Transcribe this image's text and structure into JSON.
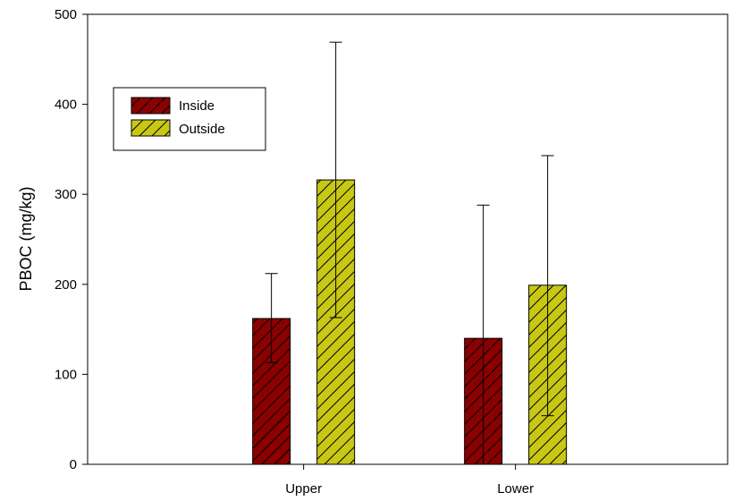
{
  "chart_data": {
    "type": "bar",
    "title": "",
    "xlabel": "",
    "ylabel": "PBOC (mg/kg)",
    "categories": [
      "Upper",
      "Lower"
    ],
    "ylim": [
      0,
      500
    ],
    "yticks": [
      0,
      100,
      200,
      300,
      400,
      500
    ],
    "grid": false,
    "legend_position": "top-left",
    "series": [
      {
        "name": "Inside",
        "color": "#8b0000",
        "pattern": "diagonal-hatch",
        "values": [
          162,
          140
        ],
        "error_lower": [
          113,
          0
        ],
        "error_upper": [
          212,
          288
        ]
      },
      {
        "name": "Outside",
        "color": "#c8c814",
        "pattern": "diagonal-hatch",
        "values": [
          316,
          199
        ],
        "error_lower": [
          163,
          54
        ],
        "error_upper": [
          469,
          343
        ]
      }
    ]
  }
}
